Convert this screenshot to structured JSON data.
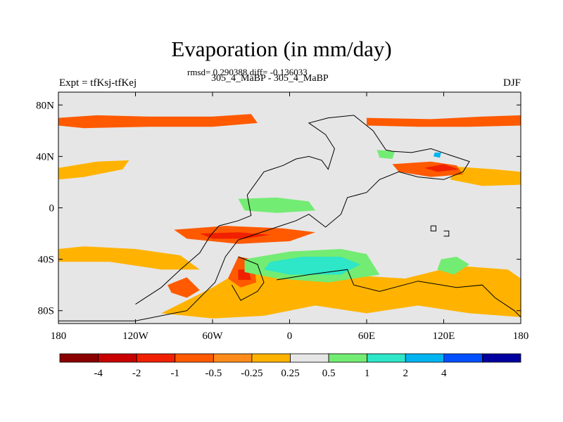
{
  "header": {
    "title": "Evaporation (in mm/day)",
    "stats": "rmsd= 0.290388 diff= -0.136033",
    "subtitle": "305_4_MaBP - 305_4_MaBP",
    "left_label": "Expt = tfKsj-tfKej",
    "right_label": "DJF"
  },
  "chart_data": {
    "type": "heatmap",
    "title": "Evaporation (in mm/day)",
    "subtitle": "305_4_MaBP - 305_4_MaBP",
    "xlabel": "",
    "ylabel": "",
    "xlim": [
      -180,
      180
    ],
    "ylim": [
      -90,
      90
    ],
    "x_ticks": [
      {
        "value": -180,
        "label": "180"
      },
      {
        "value": -120,
        "label": "120W"
      },
      {
        "value": -60,
        "label": "60W"
      },
      {
        "value": 0,
        "label": "0"
      },
      {
        "value": 60,
        "label": "60E"
      },
      {
        "value": 120,
        "label": "120E"
      },
      {
        "value": 180,
        "label": "180"
      }
    ],
    "y_ticks": [
      {
        "value": 80,
        "label": "80N"
      },
      {
        "value": 40,
        "label": "40N"
      },
      {
        "value": 0,
        "label": "0"
      },
      {
        "value": -40,
        "label": "40S"
      },
      {
        "value": -80,
        "label": "80S"
      }
    ],
    "colorbar": {
      "colors": [
        "#8b0000",
        "#c80000",
        "#f02000",
        "#ff5a00",
        "#ff8c1a",
        "#ffb300",
        "#e6e6e6",
        "#73ec73",
        "#2ee6c8",
        "#00b4f0",
        "#0050ff",
        "#0000a0"
      ],
      "labels": [
        "-4",
        "-2",
        "-1",
        "-0.5",
        "-0.25",
        "0.25",
        "0.5",
        "1",
        "2",
        "4"
      ]
    },
    "background_color": "#e6e6e6",
    "regions": [
      {
        "level": "-0.5",
        "color": "#ff5a00",
        "points": [
          [
            -180,
            70
          ],
          [
            -150,
            72
          ],
          [
            -110,
            71
          ],
          [
            -60,
            71
          ],
          [
            -30,
            73
          ],
          [
            -25,
            66
          ],
          [
            -60,
            63
          ],
          [
            -110,
            63
          ],
          [
            -160,
            62
          ],
          [
            -180,
            64
          ]
        ]
      },
      {
        "level": "-0.5",
        "color": "#ff5a00",
        "points": [
          [
            60,
            70
          ],
          [
            110,
            69
          ],
          [
            150,
            71
          ],
          [
            180,
            72
          ],
          [
            180,
            64
          ],
          [
            140,
            63
          ],
          [
            100,
            63
          ],
          [
            60,
            64
          ]
        ]
      },
      {
        "level": "-0.25",
        "color": "#ffb300",
        "points": [
          [
            -180,
            31
          ],
          [
            -150,
            36
          ],
          [
            -125,
            37
          ],
          [
            -130,
            30
          ],
          [
            -160,
            24
          ],
          [
            -180,
            22
          ]
        ]
      },
      {
        "level": "-0.25",
        "color": "#ffb300",
        "points": [
          [
            130,
            32
          ],
          [
            160,
            30
          ],
          [
            180,
            28
          ],
          [
            180,
            18
          ],
          [
            150,
            17
          ],
          [
            125,
            22
          ]
        ]
      },
      {
        "level": "-0.5",
        "color": "#ff5a00",
        "points": [
          [
            80,
            34
          ],
          [
            110,
            36
          ],
          [
            130,
            33
          ],
          [
            135,
            26
          ],
          [
            110,
            24
          ],
          [
            85,
            28
          ]
        ]
      },
      {
        "level": "-1",
        "color": "#f02000",
        "points": [
          [
            105,
            31
          ],
          [
            120,
            34
          ],
          [
            132,
            30
          ],
          [
            115,
            28
          ]
        ]
      },
      {
        "level": "0.25",
        "color": "#73ec73",
        "points": [
          [
            68,
            45
          ],
          [
            82,
            44
          ],
          [
            80,
            38
          ],
          [
            70,
            39
          ]
        ]
      },
      {
        "level": "1",
        "color": "#00b4f0",
        "points": [
          [
            113,
            43
          ],
          [
            118,
            43
          ],
          [
            117,
            39
          ],
          [
            112,
            40
          ]
        ]
      },
      {
        "level": "0.25",
        "color": "#73ec73",
        "points": [
          [
            -40,
            7
          ],
          [
            -10,
            8
          ],
          [
            15,
            5
          ],
          [
            20,
            -2
          ],
          [
            -10,
            -4
          ],
          [
            -35,
            -2
          ]
        ]
      },
      {
        "level": "-0.5",
        "color": "#ff5a00",
        "points": [
          [
            -90,
            -17
          ],
          [
            -50,
            -14
          ],
          [
            -5,
            -16
          ],
          [
            20,
            -19
          ],
          [
            0,
            -26
          ],
          [
            -40,
            -28
          ],
          [
            -80,
            -24
          ]
        ]
      },
      {
        "level": "-1",
        "color": "#f02000",
        "points": [
          [
            -70,
            -20
          ],
          [
            -40,
            -19
          ],
          [
            -15,
            -21
          ],
          [
            -35,
            -24
          ],
          [
            -60,
            -24
          ]
        ]
      },
      {
        "level": "-0.25",
        "color": "#ffb300",
        "points": [
          [
            -180,
            -32
          ],
          [
            -160,
            -30
          ],
          [
            -120,
            -32
          ],
          [
            -85,
            -37
          ],
          [
            -70,
            -48
          ],
          [
            -100,
            -48
          ],
          [
            -140,
            -42
          ],
          [
            -180,
            -42
          ]
        ]
      },
      {
        "level": "-0.25",
        "color": "#ffb300",
        "points": [
          [
            -100,
            -82
          ],
          [
            -60,
            -62
          ],
          [
            -40,
            -50
          ],
          [
            -10,
            -45
          ],
          [
            40,
            -52
          ],
          [
            90,
            -55
          ],
          [
            130,
            -45
          ],
          [
            170,
            -48
          ],
          [
            180,
            -55
          ],
          [
            180,
            -85
          ],
          [
            140,
            -82
          ],
          [
            100,
            -76
          ],
          [
            60,
            -82
          ],
          [
            20,
            -76
          ],
          [
            -20,
            -84
          ],
          [
            -60,
            -86
          ]
        ]
      },
      {
        "level": "-0.5",
        "color": "#ff5a00",
        "points": [
          [
            -95,
            -60
          ],
          [
            -80,
            -54
          ],
          [
            -70,
            -64
          ],
          [
            -80,
            -70
          ],
          [
            -92,
            -66
          ]
        ]
      },
      {
        "level": "-0.5",
        "color": "#ff5a00",
        "points": [
          [
            -40,
            -38
          ],
          [
            -28,
            -40
          ],
          [
            -26,
            -58
          ],
          [
            -38,
            -62
          ],
          [
            -48,
            -55
          ]
        ]
      },
      {
        "level": "-1",
        "color": "#f02000",
        "points": [
          [
            -40,
            -48
          ],
          [
            -32,
            -48
          ],
          [
            -30,
            -56
          ],
          [
            -40,
            -56
          ]
        ]
      },
      {
        "level": "0.25",
        "color": "#73ec73",
        "points": [
          [
            -35,
            -40
          ],
          [
            0,
            -34
          ],
          [
            40,
            -32
          ],
          [
            60,
            -36
          ],
          [
            70,
            -52
          ],
          [
            30,
            -58
          ],
          [
            -10,
            -55
          ],
          [
            -35,
            -50
          ]
        ]
      },
      {
        "level": "0.5",
        "color": "#2ee6c8",
        "points": [
          [
            -15,
            -42
          ],
          [
            10,
            -38
          ],
          [
            40,
            -38
          ],
          [
            55,
            -44
          ],
          [
            40,
            -52
          ],
          [
            0,
            -52
          ],
          [
            -20,
            -48
          ]
        ]
      },
      {
        "level": "0.25",
        "color": "#73ec73",
        "points": [
          [
            118,
            -40
          ],
          [
            130,
            -38
          ],
          [
            140,
            -44
          ],
          [
            128,
            -52
          ],
          [
            115,
            -48
          ]
        ]
      }
    ],
    "coastline": [
      [
        [
          -120,
          -75
        ],
        [
          -100,
          -62
        ],
        [
          -85,
          -48
        ],
        [
          -70,
          -35
        ],
        [
          -62,
          -22
        ],
        [
          -55,
          -14
        ],
        [
          -40,
          -10
        ],
        [
          -30,
          -6
        ],
        [
          -33,
          10
        ],
        [
          -20,
          28
        ],
        [
          -5,
          33
        ],
        [
          5,
          38
        ],
        [
          15,
          40
        ],
        [
          25,
          37
        ],
        [
          30,
          30
        ],
        [
          35,
          46
        ],
        [
          28,
          57
        ],
        [
          15,
          66
        ],
        [
          30,
          70
        ],
        [
          50,
          72
        ],
        [
          65,
          60
        ],
        [
          75,
          45
        ],
        [
          80,
          44
        ],
        [
          95,
          43
        ],
        [
          110,
          46
        ],
        [
          125,
          41
        ],
        [
          140,
          36
        ],
        [
          135,
          28
        ],
        [
          120,
          22
        ],
        [
          100,
          24
        ],
        [
          85,
          28
        ],
        [
          70,
          22
        ],
        [
          60,
          12
        ],
        [
          45,
          8
        ],
        [
          40,
          -5
        ],
        [
          28,
          -15
        ],
        [
          15,
          -5
        ],
        [
          5,
          -10
        ],
        [
          -10,
          -15
        ],
        [
          -25,
          -20
        ],
        [
          -40,
          -25
        ],
        [
          -50,
          -38
        ],
        [
          -58,
          -58
        ],
        [
          -80,
          -80
        ],
        [
          -120,
          -88
        ],
        [
          -180,
          -88
        ]
      ],
      [
        [
          -40,
          -38
        ],
        [
          -25,
          -44
        ],
        [
          -20,
          -58
        ],
        [
          -25,
          -65
        ],
        [
          -38,
          -72
        ],
        [
          -45,
          -60
        ]
      ],
      [
        [
          -10,
          -56
        ],
        [
          15,
          -52
        ],
        [
          45,
          -48
        ],
        [
          50,
          -60
        ],
        [
          70,
          -65
        ],
        [
          100,
          -57
        ],
        [
          130,
          -62
        ],
        [
          150,
          -60
        ],
        [
          160,
          -70
        ],
        [
          175,
          -80
        ],
        [
          180,
          -85
        ]
      ],
      [
        [
          110,
          -14
        ],
        [
          114,
          -14
        ],
        [
          114,
          -18
        ],
        [
          110,
          -18
        ],
        [
          110,
          -14
        ]
      ],
      [
        [
          120,
          -18
        ],
        [
          124,
          -18
        ],
        [
          124,
          -22
        ],
        [
          120,
          -22
        ]
      ]
    ]
  }
}
